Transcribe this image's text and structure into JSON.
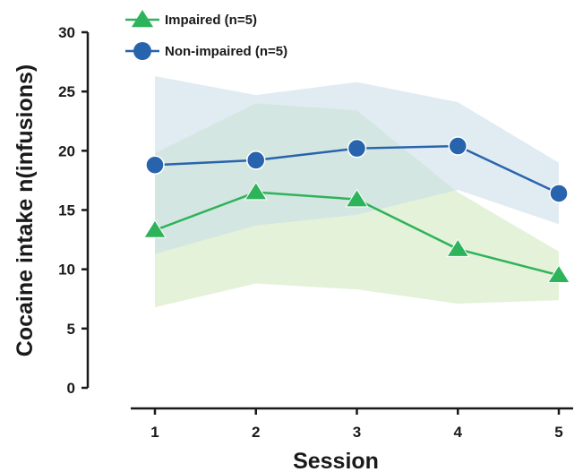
{
  "chart_data": {
    "type": "line",
    "title": "",
    "xlabel": "Session",
    "ylabel": "Cocaine intake n(infusions)",
    "x": [
      1,
      2,
      3,
      4,
      5
    ],
    "x_tick_labels": [
      "1",
      "2",
      "3",
      "4",
      "5"
    ],
    "ylim": [
      0,
      30
    ],
    "y_ticks": [
      0,
      5,
      10,
      15,
      20,
      25,
      30
    ],
    "y_tick_labels": [
      "0",
      "5",
      "10",
      "15",
      "20",
      "25",
      "30"
    ],
    "grid": false,
    "legend": "top-left",
    "series": [
      {
        "name": "Impaired (n=5)",
        "color": "#2db35a",
        "marker": "triangle",
        "values": [
          13.3,
          16.5,
          15.9,
          11.7,
          9.5
        ],
        "band_upper": [
          19.8,
          24.0,
          23.4,
          16.5,
          11.5
        ],
        "band_lower": [
          6.8,
          8.8,
          8.3,
          7.1,
          7.4
        ],
        "band_color": "#d9eecc"
      },
      {
        "name": "Non-impaired (n=5)",
        "color": "#2864ad",
        "marker": "circle",
        "values": [
          18.8,
          19.2,
          20.2,
          20.4,
          16.4
        ],
        "band_upper": [
          26.3,
          24.7,
          25.8,
          24.1,
          19.0
        ],
        "band_lower": [
          11.3,
          13.7,
          14.6,
          16.7,
          13.8
        ],
        "band_color": "#c9dde7"
      }
    ]
  }
}
